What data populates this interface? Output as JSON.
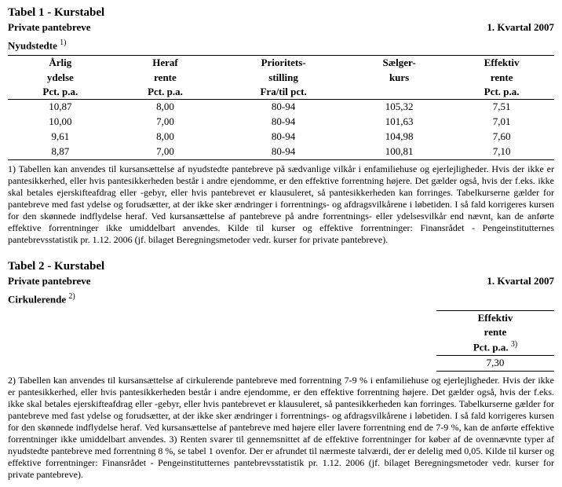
{
  "tabel1": {
    "heading": "Tabel 1 - Kurstabel",
    "subtitle": "Private pantebreve",
    "period": "1. Kvartal 2007",
    "section": "Nyudstedte",
    "section_sup": "1)",
    "headers": {
      "c1a": "Årlig",
      "c1b": "ydelse",
      "c1c": "Pct. p.a.",
      "c2a": "Heraf",
      "c2b": "rente",
      "c2c": "Pct. p.a.",
      "c3a": "Prioritets-",
      "c3b": "stilling",
      "c3c": "Fra/til pct.",
      "c4a": "Sælger-",
      "c4b": "kurs",
      "c4c": "",
      "c5a": "Effektiv",
      "c5b": "rente",
      "c5c": "Pct. p.a."
    },
    "rows": [
      {
        "c1": "10,87",
        "c2": "8,00",
        "c3": "80-94",
        "c4": "105,32",
        "c5": "7,51"
      },
      {
        "c1": "10,00",
        "c2": "7,00",
        "c3": "80-94",
        "c4": "101,63",
        "c5": "7,01"
      },
      {
        "c1": "9,61",
        "c2": "8,00",
        "c3": "80-94",
        "c4": "104,98",
        "c5": "7,60"
      },
      {
        "c1": "8,87",
        "c2": "7,00",
        "c3": "80-94",
        "c4": "100,81",
        "c5": "7,10"
      }
    ],
    "footnote": "1) Tabellen kan anvendes til kursansættelse af nyudstedte pantebreve på sædvanlige vilkår i enfamiliehuse og ejerlejligheder. Hvis der ikke er pantesikkerhed, eller hvis pantesikkerheden består i andre ejendomme, er den effektive forrentning højere. Det gælder også, hvis der f.eks. ikke skal betales ejerskifteafdrag eller -gebyr, eller hvis pantebrevet er klausuleret, så pantesikkerheden kan forringes. Tabelkurserne gælder for pantebreve med fast ydelse og forudsætter, at der ikke sker ændringer i forrentnings- og afdragsvilkårene i løbetiden. I så fald korrigeres kursen for den skønnede indflydelse heraf. Ved kursansættelse af pantebreve på andre forrentnings- eller ydelsesvilkår end nævnt, kan de anførte effektive forrentninger ikke umiddelbart anvendes. Kilde til kurser og effektive forrentninger: Finansrådet - Pengeinstitutternes pantebrevsstatistik pr. 1.12. 2006 (jf. bilaget Beregningsmetoder vedr. kurser for private pantebreve)."
  },
  "tabel2": {
    "heading": "Tabel 2 - Kurstabel",
    "subtitle": "Private pantebreve",
    "period": "1. Kvartal 2007",
    "section": "Cirkulerende",
    "section_sup": "2)",
    "headers": {
      "c1a": "Effektiv",
      "c1b": "rente",
      "c1c": "Pct. p.a.",
      "c1c_sup": "3)"
    },
    "row": {
      "c1": "7,30"
    },
    "footnote": "2) Tabellen kan anvendes til kursansættelse af cirkulerende pantebreve med forrentning 7-9 % i enfamiliehuse og ejerlejligheder. Hvis der ikke er pantesikkerhed, eller hvis pantesikkerheden består i andre ejendomme, er den effektive forrentning højere. Det gælder også, hvis der f.eks. ikke skal betales ejerskifteafdrag eller -gebyr, eller hvis pantebrevet er klausuleret, så pantesikkerheden kan forringes. Tabelkurserne gælder for pantebreve med fast ydelse og forudsætter, at der ikke sker ændringer i forrentnings- og afdragsvilkårene i løbetiden. I så fald korrigeres kursen for den skønnede indflydelse heraf. Ved kursansættelse af pantebreve med højere eller lavere forrentning end de 7-9 %, kan de anførte effektive forrentninger ikke umiddelbart anvendes. 3) Renten svarer til gennemsnittet af de effektive forrentninger for køber af de ovennævnte typer af nyudstedte pantebreve med forrentning 8 %, se tabel 1 ovenfor. Der er afrundet til nærmeste talværdi, der er delelig med 0,05. Kilde til kurser og effektive forrentninger: Finansrådet - Pengeinstitutternes pantebrevsstatistik pr. 1.12. 2006 (jf. bilaget Beregningsmetoder vedr. kurser for private pantebreve)."
  }
}
